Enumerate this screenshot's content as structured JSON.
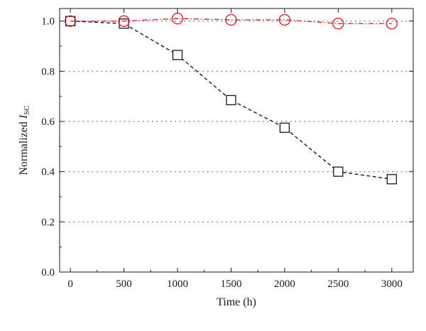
{
  "chart_data": {
    "type": "line",
    "title": "",
    "xlabel": "Time (h)",
    "ylabel": {
      "main": "Normalized ",
      "italic": "I",
      "sub": "SC"
    },
    "xlim": [
      -100,
      3200
    ],
    "ylim": [
      0.0,
      1.05
    ],
    "xticks": [
      0,
      500,
      1000,
      1500,
      2000,
      2500,
      3000
    ],
    "xtick_labels": [
      "0",
      "500",
      "1000",
      "1500",
      "2000",
      "2500",
      "3000"
    ],
    "yticks": [
      0.0,
      0.2,
      0.4,
      0.6,
      0.8,
      1.0
    ],
    "ytick_labels": [
      "0.0",
      "0.2",
      "0.4",
      "0.6",
      "0.8",
      "1.0"
    ],
    "grid": {
      "horizontal": "dotted",
      "vertical": "none"
    },
    "legend": "none",
    "x": [
      0,
      500,
      1000,
      1500,
      2000,
      2500,
      3000
    ],
    "series": [
      {
        "marker": "square",
        "color": "#1a1a1a",
        "line": "dashed",
        "values": [
          1.0,
          0.99,
          0.865,
          0.685,
          0.575,
          0.4,
          0.37
        ]
      },
      {
        "marker": "circle",
        "color": "#e0262a",
        "line": "dash-dot",
        "values": [
          1.0,
          1.0,
          1.01,
          1.005,
          1.005,
          0.99,
          0.99
        ]
      }
    ]
  }
}
